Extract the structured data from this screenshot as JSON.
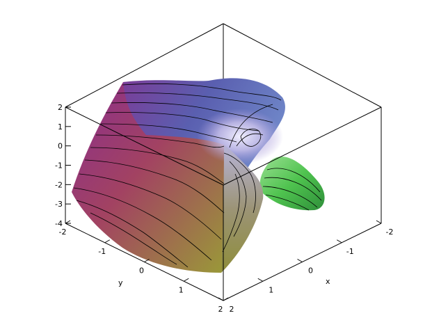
{
  "chart_data": {
    "type": "surface3d",
    "title": "",
    "xlabel": "x",
    "ylabel": "y",
    "zlabel": "",
    "x_range": [
      -2,
      2
    ],
    "y_range": [
      -2,
      2
    ],
    "z_range": [
      -4,
      2
    ],
    "x_ticks": [
      "-2",
      "-1",
      "0",
      "1",
      "2"
    ],
    "y_ticks": [
      "-2",
      "-1",
      "0",
      "1",
      "2"
    ],
    "z_ticks": [
      "2",
      "1",
      "0",
      "-1",
      "-2",
      "-3",
      "-4"
    ],
    "style": "shaded surface with contour lines",
    "colors": {
      "purple": "#8a2e8e",
      "violet": "#6a55b6",
      "lavender": "#d9d0ef",
      "olive": "#9a9a38",
      "red": "#a8484a",
      "green": "#4fc34f",
      "box": "#000000"
    }
  }
}
